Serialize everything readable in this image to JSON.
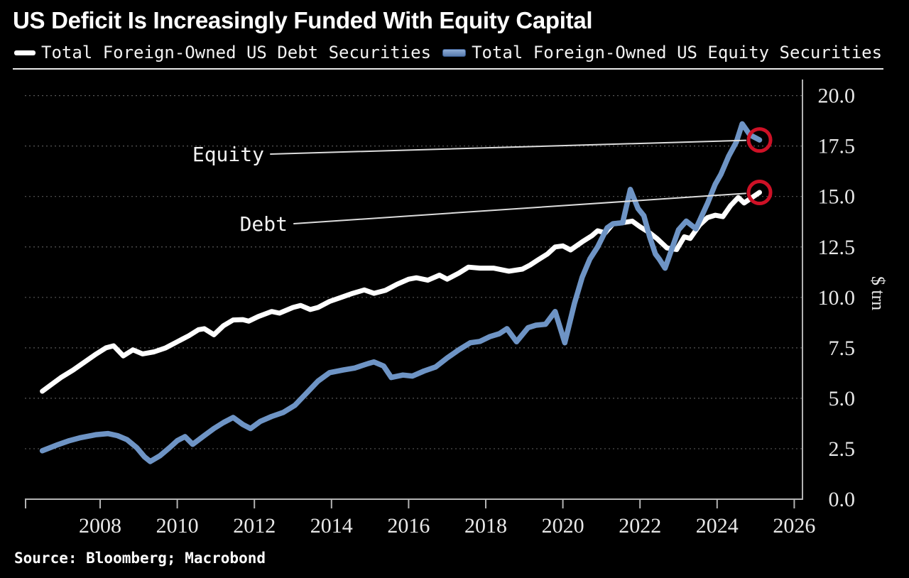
{
  "header": {
    "title": "US Deficit Is Increasingly Funded With Equity Capital",
    "source": "Source: Bloomberg; Macrobond"
  },
  "colors": {
    "background": "#000000",
    "debt_line": "#ffffff",
    "equity_line": "#6e94c5",
    "end_marker": "#ce1126",
    "gridline": "#666666",
    "axis": "#b3b3b3",
    "tick_label": "#e8e8e8"
  },
  "chart_data": {
    "type": "line",
    "title": "US Deficit Is Increasingly Funded With Equity Capital",
    "xlabel": "",
    "ylabel": "$ trn",
    "x_range": [
      2006.05,
      2026.15
    ],
    "y_range": [
      0,
      20
    ],
    "grid": "horizontal-dotted",
    "legend_position": "top",
    "x_ticks": [
      2008,
      2010,
      2012,
      2014,
      2016,
      2018,
      2020,
      2022,
      2024,
      2026
    ],
    "x_tick_labels": [
      "2008",
      "2010",
      "2012",
      "2014",
      "2016",
      "2018",
      "2020",
      "2022",
      "2024",
      "2026"
    ],
    "y_ticks": [
      0.0,
      2.5,
      5.0,
      7.5,
      10.0,
      12.5,
      15.0,
      17.5,
      20.0
    ],
    "y_tick_labels": [
      "0.0",
      "2.5",
      "5.0",
      "7.5",
      "10.0",
      "12.5",
      "15.0",
      "17.5",
      "20.0"
    ],
    "unit_label": "$ trn",
    "annotations": [
      {
        "label": "Equity",
        "series": "equity"
      },
      {
        "label": "Debt",
        "series": "debt"
      }
    ],
    "series": [
      {
        "id": "debt",
        "name": "Total Foreign-Owned US Debt Securities",
        "color": "#ffffff",
        "end_marker": true,
        "points": [
          [
            2006.5,
            5.35
          ],
          [
            2006.75,
            5.7
          ],
          [
            2007.0,
            6.05
          ],
          [
            2007.3,
            6.4
          ],
          [
            2007.6,
            6.8
          ],
          [
            2007.9,
            7.2
          ],
          [
            2008.15,
            7.5
          ],
          [
            2008.35,
            7.6
          ],
          [
            2008.6,
            7.1
          ],
          [
            2008.85,
            7.4
          ],
          [
            2009.1,
            7.2
          ],
          [
            2009.4,
            7.3
          ],
          [
            2009.7,
            7.5
          ],
          [
            2010.0,
            7.8
          ],
          [
            2010.3,
            8.1
          ],
          [
            2010.55,
            8.4
          ],
          [
            2010.7,
            8.45
          ],
          [
            2010.95,
            8.15
          ],
          [
            2011.2,
            8.6
          ],
          [
            2011.45,
            8.88
          ],
          [
            2011.7,
            8.9
          ],
          [
            2011.85,
            8.82
          ],
          [
            2012.1,
            9.05
          ],
          [
            2012.45,
            9.3
          ],
          [
            2012.65,
            9.22
          ],
          [
            2013.0,
            9.5
          ],
          [
            2013.2,
            9.6
          ],
          [
            2013.45,
            9.4
          ],
          [
            2013.65,
            9.5
          ],
          [
            2013.95,
            9.8
          ],
          [
            2014.25,
            10.0
          ],
          [
            2014.55,
            10.2
          ],
          [
            2014.85,
            10.37
          ],
          [
            2015.1,
            10.2
          ],
          [
            2015.4,
            10.35
          ],
          [
            2015.7,
            10.65
          ],
          [
            2016.0,
            10.9
          ],
          [
            2016.2,
            10.97
          ],
          [
            2016.5,
            10.85
          ],
          [
            2016.8,
            11.1
          ],
          [
            2017.0,
            10.9
          ],
          [
            2017.3,
            11.2
          ],
          [
            2017.55,
            11.5
          ],
          [
            2017.85,
            11.45
          ],
          [
            2018.2,
            11.45
          ],
          [
            2018.6,
            11.3
          ],
          [
            2018.95,
            11.4
          ],
          [
            2019.15,
            11.6
          ],
          [
            2019.35,
            11.85
          ],
          [
            2019.6,
            12.15
          ],
          [
            2019.8,
            12.5
          ],
          [
            2020.0,
            12.55
          ],
          [
            2020.2,
            12.35
          ],
          [
            2020.5,
            12.75
          ],
          [
            2020.75,
            13.05
          ],
          [
            2020.9,
            13.3
          ],
          [
            2021.1,
            13.2
          ],
          [
            2021.3,
            13.65
          ],
          [
            2021.55,
            13.7
          ],
          [
            2021.8,
            13.78
          ],
          [
            2022.0,
            13.5
          ],
          [
            2022.25,
            13.2
          ],
          [
            2022.45,
            12.9
          ],
          [
            2022.7,
            12.45
          ],
          [
            2022.95,
            12.37
          ],
          [
            2023.15,
            13.0
          ],
          [
            2023.3,
            12.92
          ],
          [
            2023.55,
            13.6
          ],
          [
            2023.75,
            13.95
          ],
          [
            2023.95,
            14.07
          ],
          [
            2024.15,
            14.0
          ],
          [
            2024.35,
            14.55
          ],
          [
            2024.55,
            14.95
          ],
          [
            2024.7,
            14.68
          ],
          [
            2025.1,
            15.2
          ]
        ]
      },
      {
        "id": "equity",
        "name": "Total Foreign-Owned US Equity Securities",
        "color": "#6e94c5",
        "end_marker": true,
        "points": [
          [
            2006.5,
            2.4
          ],
          [
            2006.9,
            2.7
          ],
          [
            2007.2,
            2.9
          ],
          [
            2007.5,
            3.05
          ],
          [
            2007.9,
            3.2
          ],
          [
            2008.2,
            3.25
          ],
          [
            2008.45,
            3.15
          ],
          [
            2008.7,
            2.95
          ],
          [
            2008.95,
            2.55
          ],
          [
            2009.15,
            2.1
          ],
          [
            2009.3,
            1.87
          ],
          [
            2009.55,
            2.15
          ],
          [
            2009.8,
            2.55
          ],
          [
            2010.0,
            2.9
          ],
          [
            2010.2,
            3.1
          ],
          [
            2010.4,
            2.72
          ],
          [
            2010.7,
            3.15
          ],
          [
            2010.95,
            3.5
          ],
          [
            2011.2,
            3.8
          ],
          [
            2011.45,
            4.05
          ],
          [
            2011.7,
            3.7
          ],
          [
            2011.9,
            3.5
          ],
          [
            2012.15,
            3.85
          ],
          [
            2012.45,
            4.1
          ],
          [
            2012.75,
            4.3
          ],
          [
            2013.05,
            4.65
          ],
          [
            2013.35,
            5.25
          ],
          [
            2013.65,
            5.85
          ],
          [
            2013.95,
            6.27
          ],
          [
            2014.3,
            6.4
          ],
          [
            2014.6,
            6.5
          ],
          [
            2014.95,
            6.72
          ],
          [
            2015.1,
            6.8
          ],
          [
            2015.35,
            6.6
          ],
          [
            2015.55,
            6.03
          ],
          [
            2015.85,
            6.15
          ],
          [
            2016.1,
            6.1
          ],
          [
            2016.4,
            6.35
          ],
          [
            2016.7,
            6.55
          ],
          [
            2017.0,
            7.0
          ],
          [
            2017.3,
            7.4
          ],
          [
            2017.6,
            7.75
          ],
          [
            2017.85,
            7.82
          ],
          [
            2018.1,
            8.05
          ],
          [
            2018.35,
            8.2
          ],
          [
            2018.55,
            8.45
          ],
          [
            2018.8,
            7.8
          ],
          [
            2019.1,
            8.5
          ],
          [
            2019.3,
            8.62
          ],
          [
            2019.55,
            8.67
          ],
          [
            2019.8,
            9.3
          ],
          [
            2020.05,
            7.75
          ],
          [
            2020.3,
            9.7
          ],
          [
            2020.5,
            11.0
          ],
          [
            2020.7,
            11.9
          ],
          [
            2020.9,
            12.5
          ],
          [
            2021.15,
            13.45
          ],
          [
            2021.3,
            13.65
          ],
          [
            2021.55,
            13.7
          ],
          [
            2021.75,
            15.35
          ],
          [
            2021.95,
            14.4
          ],
          [
            2022.1,
            14.05
          ],
          [
            2022.25,
            13.0
          ],
          [
            2022.4,
            12.15
          ],
          [
            2022.5,
            11.9
          ],
          [
            2022.65,
            11.45
          ],
          [
            2023.0,
            13.35
          ],
          [
            2023.2,
            13.78
          ],
          [
            2023.45,
            13.4
          ],
          [
            2023.75,
            14.65
          ],
          [
            2023.95,
            15.6
          ],
          [
            2024.1,
            16.1
          ],
          [
            2024.3,
            17.0
          ],
          [
            2024.5,
            17.7
          ],
          [
            2024.65,
            18.6
          ],
          [
            2024.85,
            18.05
          ],
          [
            2025.1,
            17.8
          ]
        ]
      }
    ]
  }
}
